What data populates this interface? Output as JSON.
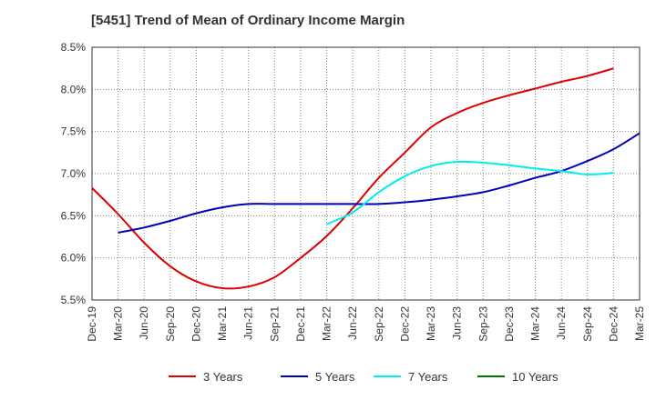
{
  "chart_data": {
    "type": "line",
    "title": "[5451]  Trend of Mean of Ordinary Income Margin",
    "x": [
      "Dec-19",
      "Mar-20",
      "Jun-20",
      "Sep-20",
      "Dec-20",
      "Mar-21",
      "Jun-21",
      "Sep-21",
      "Dec-21",
      "Mar-22",
      "Jun-22",
      "Sep-22",
      "Dec-22",
      "Mar-23",
      "Jun-23",
      "Sep-23",
      "Dec-23",
      "Mar-24",
      "Jun-24",
      "Sep-24",
      "Dec-24",
      "Mar-25"
    ],
    "y_ticks": [
      "5.5%",
      "6.0%",
      "6.5%",
      "7.0%",
      "7.5%",
      "8.0%",
      "8.5%"
    ],
    "ylim": [
      5.5,
      8.5
    ],
    "grid": true,
    "legend_position": "bottom",
    "series": [
      {
        "name": "3 Years",
        "color": "#dd0000",
        "values": [
          6.83,
          6.52,
          6.18,
          5.9,
          5.72,
          5.64,
          5.66,
          5.77,
          6.0,
          6.26,
          6.59,
          6.95,
          7.25,
          7.55,
          7.72,
          7.84,
          7.93,
          8.01,
          8.09,
          8.16,
          8.25,
          null
        ]
      },
      {
        "name": "5 Years",
        "color": "#0000bb",
        "values": [
          null,
          6.3,
          6.36,
          6.44,
          6.53,
          6.6,
          6.64,
          6.64,
          6.64,
          6.64,
          6.64,
          6.64,
          6.66,
          6.69,
          6.73,
          6.78,
          6.86,
          6.95,
          7.03,
          7.15,
          7.29,
          7.48
        ]
      },
      {
        "name": "7 Years",
        "color": "#00eeee",
        "values": [
          null,
          null,
          null,
          null,
          null,
          null,
          null,
          null,
          null,
          6.4,
          6.54,
          6.78,
          6.97,
          7.09,
          7.14,
          7.13,
          7.1,
          7.06,
          7.03,
          6.99,
          7.01,
          null
        ]
      },
      {
        "name": "10 Years",
        "color": "#007700",
        "values": [
          null,
          null,
          null,
          null,
          null,
          null,
          null,
          null,
          null,
          null,
          null,
          null,
          null,
          null,
          null,
          null,
          null,
          null,
          null,
          null,
          null,
          null
        ]
      }
    ]
  }
}
